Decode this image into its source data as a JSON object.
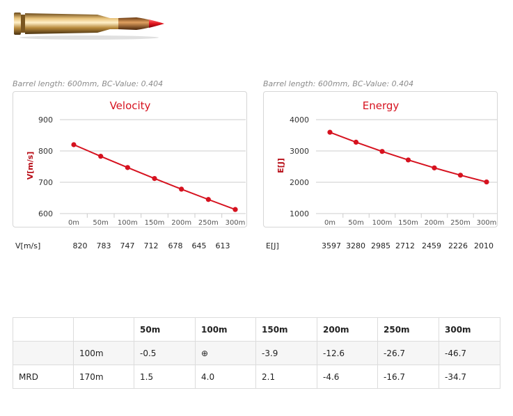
{
  "captions": {
    "velocity": "Barrel length: 600mm, BC-Value: 0.404",
    "energy": "Barrel length: 600mm, BC-Value: 0.404"
  },
  "colors": {
    "series": "#d6121f",
    "title": "#d6121f",
    "grid": "#cccccc"
  },
  "chart_data": [
    {
      "type": "line",
      "title": "Velocity",
      "xlabel": "",
      "ylabel": "V[m/s]",
      "categories": [
        "0m",
        "50m",
        "100m",
        "150m",
        "200m",
        "250m",
        "300m"
      ],
      "series": [
        {
          "values": [
            820,
            783,
            747,
            712,
            678,
            645,
            613
          ]
        }
      ],
      "ylim": [
        600,
        900
      ],
      "yticks": [
        "900",
        "800",
        "700",
        "600"
      ],
      "grid": true
    },
    {
      "type": "line",
      "title": "Energy",
      "xlabel": "",
      "ylabel": "E[J]",
      "categories": [
        "0m",
        "50m",
        "100m",
        "150m",
        "200m",
        "250m",
        "300m"
      ],
      "series": [
        {
          "values": [
            3597,
            3280,
            2985,
            2712,
            2459,
            2226,
            2010
          ]
        }
      ],
      "ylim": [
        1000,
        4000
      ],
      "yticks": [
        "4000",
        "3000",
        "2000",
        "1000"
      ],
      "grid": true
    }
  ],
  "value_rows": {
    "velocity": {
      "label": "V[m/s]",
      "values": [
        "820",
        "783",
        "747",
        "712",
        "678",
        "645",
        "613"
      ]
    },
    "energy": {
      "label": "E[J]",
      "values": [
        "3597",
        "3280",
        "2985",
        "2712",
        "2459",
        "2226",
        "2010"
      ]
    }
  },
  "trajectory_table": {
    "headers": [
      "",
      "",
      "50m",
      "100m",
      "150m",
      "200m",
      "250m",
      "300m"
    ],
    "rows": [
      [
        "",
        "100m",
        "-0.5",
        "⊕",
        "-3.9",
        "-12.6",
        "-26.7",
        "-46.7"
      ],
      [
        "MRD",
        "170m",
        "1.5",
        "4.0",
        "2.1",
        "-4.6",
        "-16.7",
        "-34.7"
      ]
    ]
  }
}
